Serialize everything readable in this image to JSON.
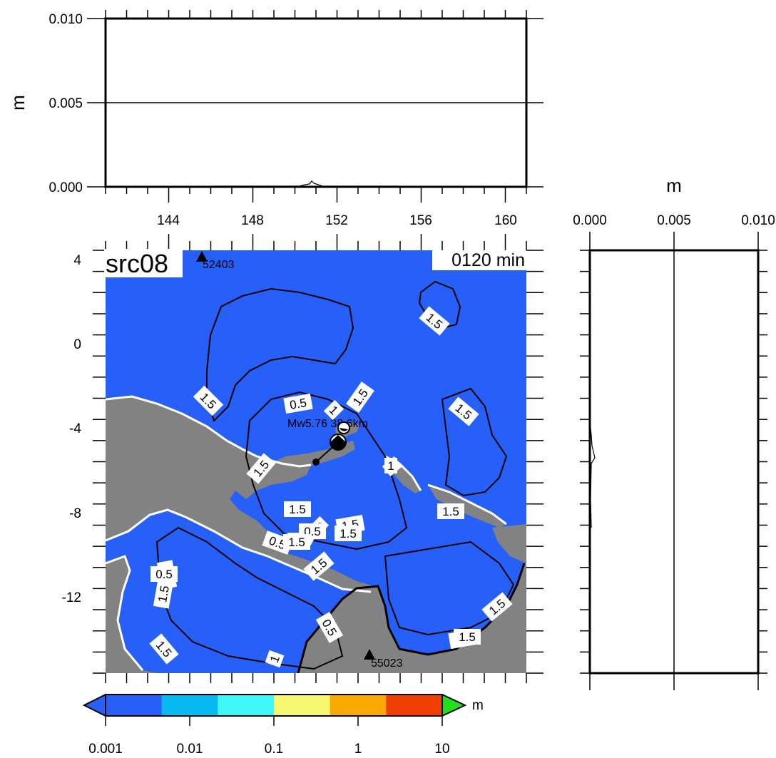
{
  "map": {
    "title": "src08",
    "time_label": "0120 min",
    "event_label": "Mw5.76  38.6km",
    "stations": [
      {
        "id": "52403"
      },
      {
        "id": "55023"
      }
    ],
    "x_ticks": [
      "144",
      "148",
      "152",
      "156",
      "160"
    ],
    "y_ticks": [
      "4",
      "0",
      "-4",
      "-8",
      "-12"
    ],
    "contour_labels": [
      "1.5",
      "1.5",
      "1.5",
      "0.5",
      "1",
      "1.5",
      "1.5",
      "1",
      "1.5",
      "1.5",
      "1",
      "1.5",
      "1.5",
      "1",
      "0.5",
      "1",
      "1.5",
      "0.5",
      "1.5",
      "1.5",
      "1.5",
      "0.5",
      "1",
      "1.5",
      "0.5",
      "1.5",
      "1.5",
      "0.5",
      "1"
    ],
    "colors": {
      "ocean": "#2660f8",
      "land": "#828282",
      "coast": "#ffffff",
      "contour": "#000000"
    }
  },
  "top_profile": {
    "y_unit": "m",
    "y_ticks": [
      "0.010",
      "0.005",
      "0.000"
    ]
  },
  "side_profile": {
    "x_unit": "m",
    "x_ticks": [
      "0.000",
      "0.005",
      "0.010"
    ]
  },
  "colorbar": {
    "unit": "m",
    "ticks": [
      "0.001",
      "0.01",
      "0.1",
      "1",
      "10"
    ],
    "segment_colors": [
      "#2660f8",
      "#08b8f0",
      "#40f8f8",
      "#f8f870",
      "#f8a800",
      "#f04000"
    ],
    "under_color": "#2660f8",
    "over_color": "#20e020"
  }
}
